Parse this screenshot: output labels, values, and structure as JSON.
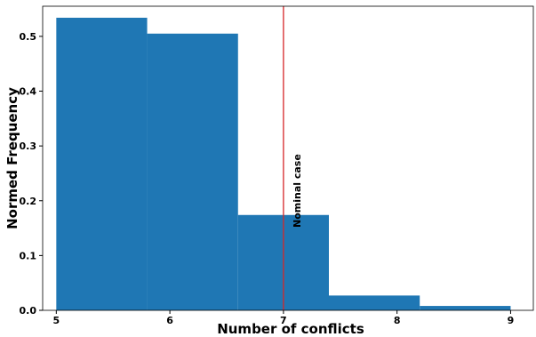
{
  "chart_data": {
    "type": "bar",
    "subtype": "histogram",
    "xlabel": "Number of conflicts",
    "ylabel": "Normed Frequency",
    "xlim": [
      4.88,
      9.2
    ],
    "ylim": [
      0,
      0.555
    ],
    "xticks": [
      5,
      6,
      7,
      8,
      9
    ],
    "yticks": [
      0.0,
      0.1,
      0.2,
      0.3,
      0.4,
      0.5
    ],
    "bins": [
      {
        "x0": 5.0,
        "x1": 5.8,
        "value": 0.534
      },
      {
        "x0": 5.8,
        "x1": 6.6,
        "value": 0.505
      },
      {
        "x0": 6.6,
        "x1": 7.4,
        "value": 0.174
      },
      {
        "x0": 7.4,
        "x1": 8.2,
        "value": 0.027
      },
      {
        "x0": 8.2,
        "x1": 9.0,
        "value": 0.008
      }
    ],
    "bar_color": "#1f77b4",
    "reference_line": {
      "x": 7.0,
      "label": "Nominal case",
      "color": "#d62728"
    },
    "grid": false,
    "legend": "none"
  }
}
